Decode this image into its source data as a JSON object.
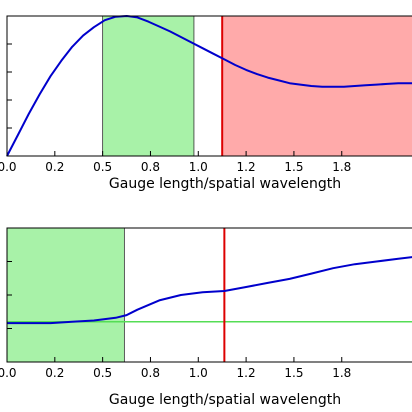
{
  "chart_data": [
    {
      "type": "line",
      "xlabel": "Gauge length/spatial wavelength",
      "ylabel": "",
      "title": "",
      "xlim": [
        0.0,
        1.9
      ],
      "ylim": [
        0.0,
        1.0
      ],
      "grid": false,
      "x_tick_labels": [
        "0.0",
        "0.2",
        "0.5",
        "0.8",
        "1.0",
        "1.2",
        "1.5",
        "1.8"
      ],
      "x_tick_values": [
        0.0,
        0.22,
        0.44,
        0.66,
        0.88,
        1.1,
        1.32,
        1.54
      ],
      "line_color": "#0000cc",
      "series": [
        {
          "x": [
            0.0,
            0.05,
            0.1,
            0.15,
            0.2,
            0.25,
            0.3,
            0.35,
            0.4,
            0.45,
            0.5,
            0.55,
            0.6,
            0.65,
            0.7,
            0.75,
            0.8,
            0.85,
            0.9,
            0.95,
            1.0,
            1.05,
            1.1,
            1.15,
            1.2,
            1.25,
            1.3,
            1.35,
            1.4,
            1.45,
            1.5,
            1.55,
            1.6,
            1.65,
            1.7,
            1.75,
            1.8,
            1.85,
            1.9
          ],
          "y": [
            0.0,
            0.15,
            0.3,
            0.44,
            0.57,
            0.68,
            0.78,
            0.86,
            0.92,
            0.97,
            0.995,
            1.0,
            0.99,
            0.96,
            0.925,
            0.89,
            0.85,
            0.81,
            0.77,
            0.73,
            0.69,
            0.65,
            0.615,
            0.585,
            0.56,
            0.54,
            0.52,
            0.51,
            0.5,
            0.495,
            0.495,
            0.495,
            0.5,
            0.505,
            0.51,
            0.515,
            0.52,
            0.52,
            0.52
          ]
        }
      ],
      "green_band": [
        0.44,
        0.86
      ],
      "red_band": [
        0.99,
        1.9
      ],
      "vertical_line": 0.99,
      "band_colors": {
        "green": "#a8f2a8",
        "red": "#ffaaaa",
        "vline": "#dd0000"
      }
    },
    {
      "type": "line",
      "xlabel": "Gauge length/spatial wavelength",
      "ylabel": "",
      "title": "",
      "xlim": [
        0.0,
        1.9
      ],
      "ylim": [
        0.0,
        1.0
      ],
      "grid": false,
      "x_tick_labels": [
        "0.0",
        "0.2",
        "0.5",
        "0.8",
        "1.0",
        "1.2",
        "1.5",
        "1.8"
      ],
      "x_tick_values": [
        0.0,
        0.22,
        0.44,
        0.66,
        0.88,
        1.1,
        1.32,
        1.54
      ],
      "line_color": "#0000cc",
      "series": [
        {
          "x": [
            0.0,
            0.1,
            0.2,
            0.3,
            0.4,
            0.5,
            0.55,
            0.6,
            0.7,
            0.8,
            0.9,
            1.0,
            1.1,
            1.2,
            1.3,
            1.4,
            1.5,
            1.6,
            1.7,
            1.8,
            1.9
          ],
          "y": [
            0.29,
            0.29,
            0.29,
            0.3,
            0.31,
            0.33,
            0.35,
            0.39,
            0.46,
            0.5,
            0.52,
            0.53,
            0.56,
            0.59,
            0.62,
            0.66,
            0.7,
            0.73,
            0.75,
            0.77,
            0.79
          ]
        }
      ],
      "green_band": [
        0.0,
        0.54
      ],
      "horizontal_line": 0.3,
      "vertical_line": 1.0,
      "band_colors": {
        "green": "#a8f2a8",
        "hline": "#55dd55",
        "vline": "#dd0000"
      }
    }
  ]
}
